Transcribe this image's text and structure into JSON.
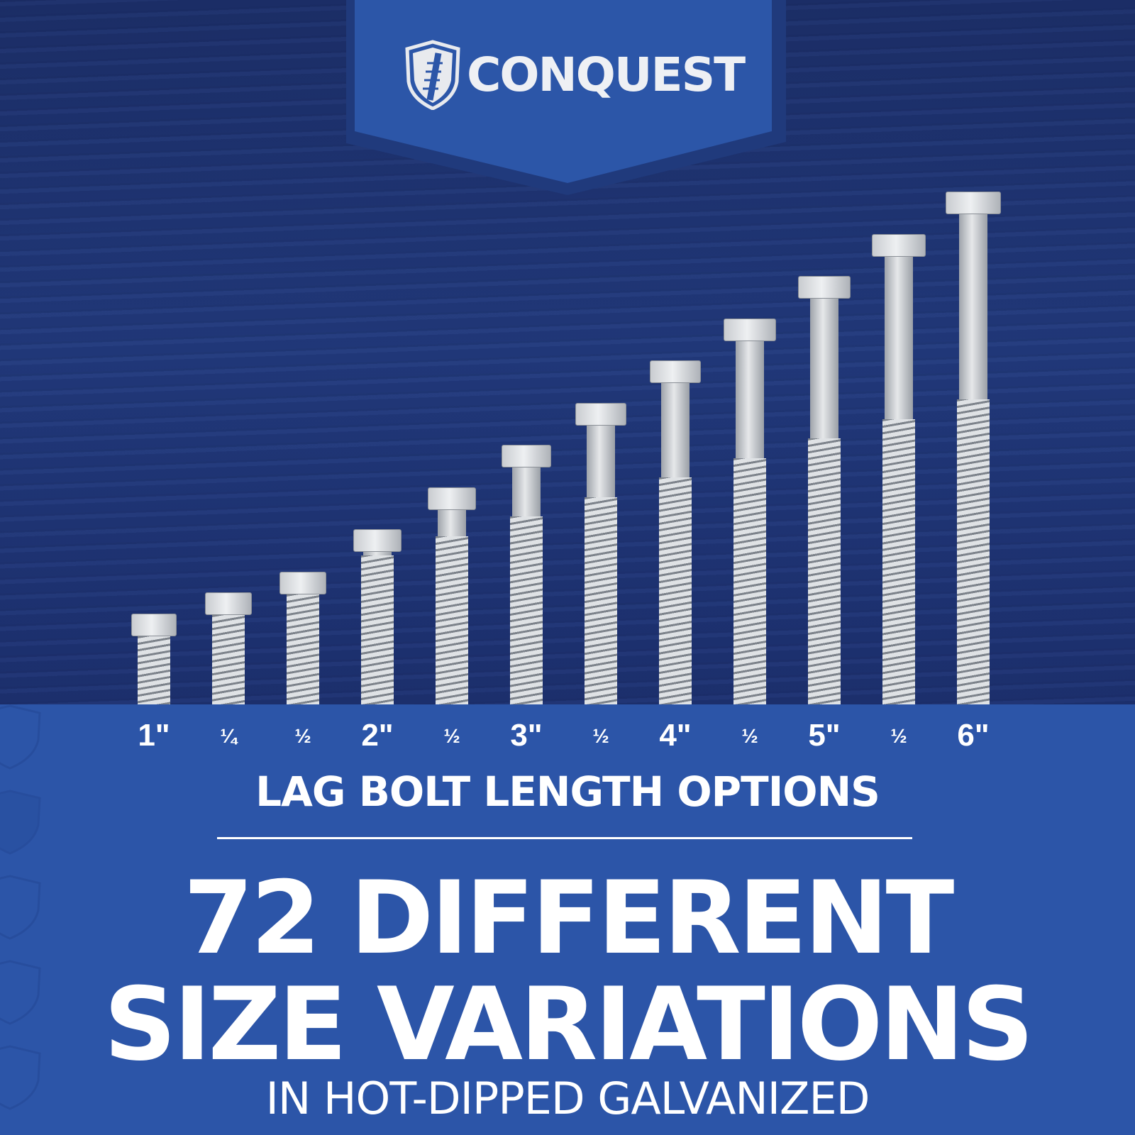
{
  "brand": {
    "name": "CONQUEST",
    "banner_color": "#2c56a8"
  },
  "colors": {
    "background_wood": "#1f3474",
    "band": "#2c55a8",
    "text": "#ffffff"
  },
  "bolts": [
    {
      "label": "1\"",
      "length_in": 1,
      "kind": "whole"
    },
    {
      "label": "¼",
      "length_in": 1.25,
      "kind": "frac"
    },
    {
      "label": "½",
      "length_in": 1.5,
      "kind": "frac"
    },
    {
      "label": "2\"",
      "length_in": 2,
      "kind": "whole"
    },
    {
      "label": "½",
      "length_in": 2.5,
      "kind": "frac"
    },
    {
      "label": "3\"",
      "length_in": 3,
      "kind": "whole"
    },
    {
      "label": "½",
      "length_in": 3.5,
      "kind": "frac"
    },
    {
      "label": "4\"",
      "length_in": 4,
      "kind": "whole"
    },
    {
      "label": "½",
      "length_in": 4.5,
      "kind": "frac"
    },
    {
      "label": "5\"",
      "length_in": 5,
      "kind": "whole"
    },
    {
      "label": "½",
      "length_in": 5.5,
      "kind": "frac"
    },
    {
      "label": "6\"",
      "length_in": 6,
      "kind": "whole"
    }
  ],
  "headline": {
    "subtitle": "LAG BOLT LENGTH OPTIONS",
    "line1": "72 DIFFERENT",
    "line2": "SIZE VARIATIONS",
    "tagline": "IN HOT-DIPPED GALVANIZED"
  }
}
